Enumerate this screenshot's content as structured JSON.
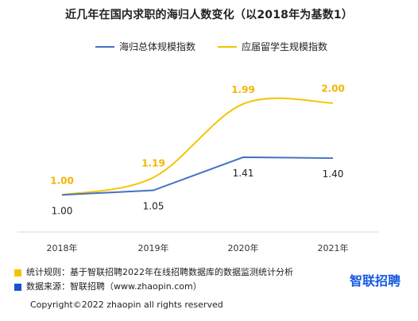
{
  "title": "近几年在国内求职的海归人数变化（以2018年为基数1）",
  "chart_data": {
    "type": "line",
    "categories": [
      "2018年",
      "2019年",
      "2020年",
      "2021年"
    ],
    "series": [
      {
        "name": "海归总体规模指数",
        "values": [
          1.0,
          1.05,
          1.41,
          1.4
        ],
        "color": "#4472c4"
      },
      {
        "name": "应届留学生规模指数",
        "values": [
          1.0,
          1.19,
          1.99,
          2.0
        ],
        "color": "#f5c400"
      }
    ],
    "label_colors": {
      "海归总体规模指数": "#222222",
      "应届留学生规模指数": "#f5b400"
    },
    "ylim": [
      0.7,
      2.3
    ],
    "grid": false,
    "legend": "top"
  },
  "notes": [
    {
      "text": "统计规则：基于智联招聘2022年在线招聘数据库的数据监测统计分析",
      "color": "#f5c400"
    },
    {
      "text": "数据来源：智联招聘（www.zhaopin.com）",
      "color": "#1f4fd1"
    }
  ],
  "brand": "智联招聘",
  "copyright": "Copyright©2022 zhaopin all rights reserved"
}
